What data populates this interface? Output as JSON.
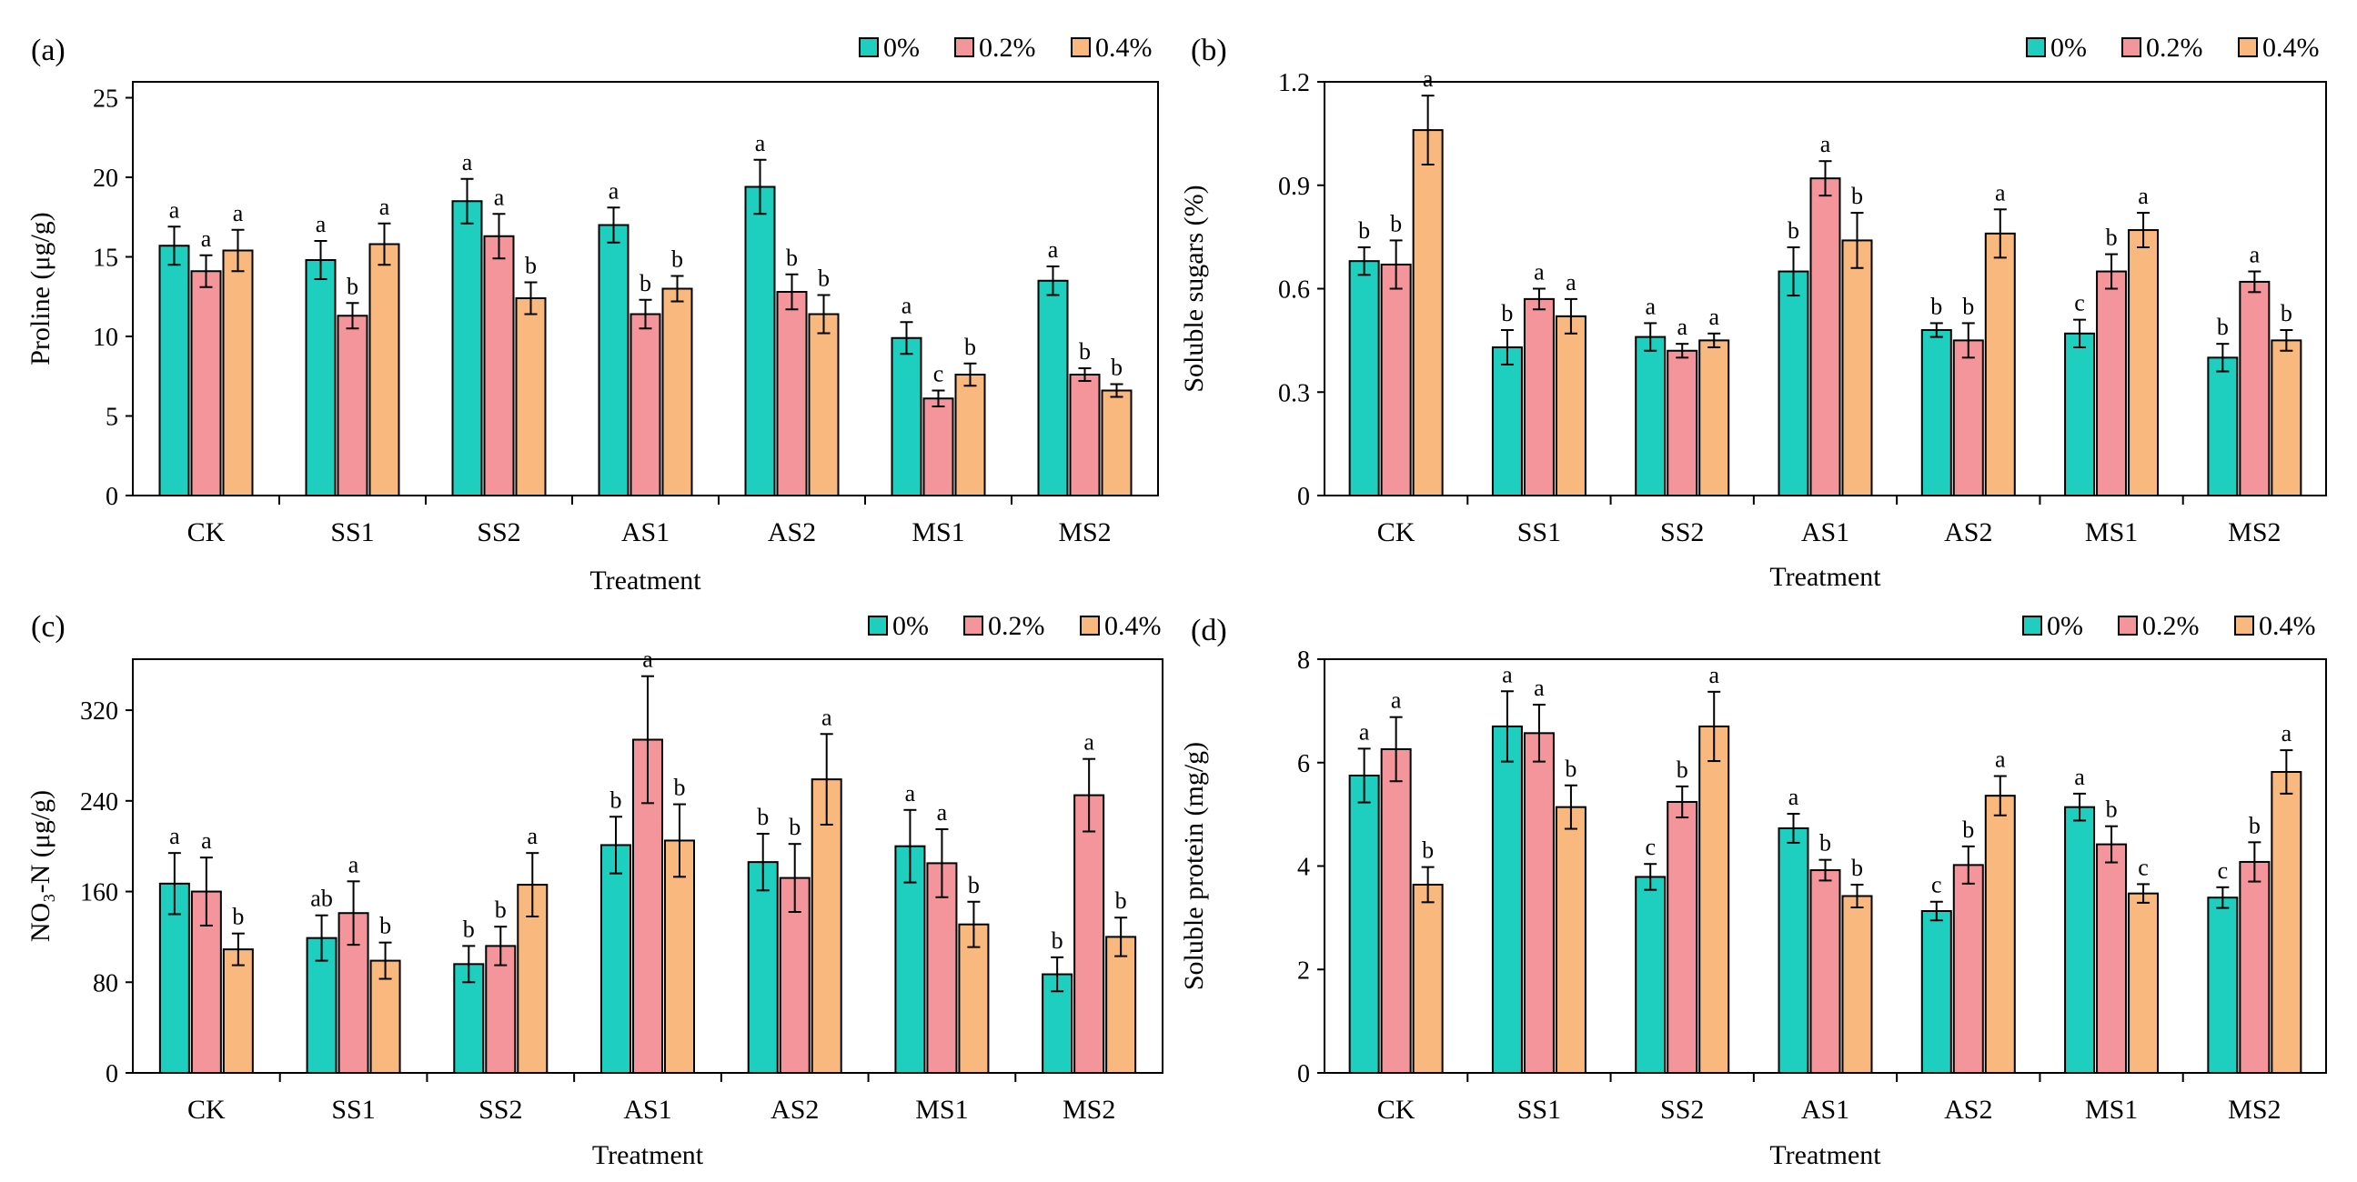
{
  "colors": {
    "0%": "#1ECFC0",
    "0.2%": "#F4949B",
    "0.4%": "#F8B87E",
    "axis": "#000000"
  },
  "chart_data": [
    {
      "type": "bar",
      "panel": "(a)",
      "categories": [
        "CK",
        "SS1",
        "SS2",
        "AS1",
        "AS2",
        "MS1",
        "MS2"
      ],
      "xlabel": "Treatment",
      "ylabel": "Proline (μg/g)",
      "ylim": [
        0,
        26
      ],
      "yticks": [
        0,
        5,
        10,
        15,
        20,
        25
      ],
      "legend": {
        "position": "top-right",
        "entries": [
          "0%",
          "0.2%",
          "0.4%"
        ]
      },
      "series": [
        {
          "name": "0%",
          "values": [
            15.7,
            14.8,
            18.5,
            17.0,
            19.4,
            9.9,
            13.5
          ],
          "errors": [
            1.2,
            1.2,
            1.4,
            1.1,
            1.7,
            1.0,
            0.9
          ],
          "labels": [
            "a",
            "a",
            "a",
            "a",
            "a",
            "a",
            "a"
          ]
        },
        {
          "name": "0.2%",
          "values": [
            14.1,
            11.3,
            16.3,
            11.4,
            12.8,
            6.1,
            7.6
          ],
          "errors": [
            1.0,
            0.8,
            1.4,
            0.9,
            1.1,
            0.5,
            0.4
          ],
          "labels": [
            "a",
            "b",
            "a",
            "b",
            "b",
            "c",
            "b"
          ]
        },
        {
          "name": "0.4%",
          "values": [
            15.4,
            15.8,
            12.4,
            13.0,
            11.4,
            7.6,
            6.6
          ],
          "errors": [
            1.3,
            1.3,
            1.0,
            0.8,
            1.2,
            0.7,
            0.4
          ],
          "labels": [
            "a",
            "a",
            "b",
            "b",
            "b",
            "b",
            "b"
          ]
        }
      ]
    },
    {
      "type": "bar",
      "panel": "(b)",
      "categories": [
        "CK",
        "SS1",
        "SS2",
        "AS1",
        "AS2",
        "MS1",
        "MS2"
      ],
      "xlabel": "Treatment",
      "ylabel": "Soluble sugars (%)",
      "ylim": [
        0,
        1.2
      ],
      "yticks": [
        "0",
        "0.3",
        "0.6",
        "0.9",
        "1.2"
      ],
      "legend": {
        "position": "top-right",
        "entries": [
          "0%",
          "0.2%",
          "0.4%"
        ]
      },
      "series": [
        {
          "name": "0%",
          "values": [
            0.68,
            0.43,
            0.46,
            0.65,
            0.48,
            0.47,
            0.4
          ],
          "errors": [
            0.04,
            0.05,
            0.04,
            0.07,
            0.02,
            0.04,
            0.04
          ],
          "labels": [
            "b",
            "b",
            "a",
            "b",
            "b",
            "c",
            "b"
          ]
        },
        {
          "name": "0.2%",
          "values": [
            0.67,
            0.57,
            0.42,
            0.92,
            0.45,
            0.65,
            0.62
          ],
          "errors": [
            0.07,
            0.03,
            0.02,
            0.05,
            0.05,
            0.05,
            0.03
          ],
          "labels": [
            "b",
            "a",
            "a",
            "a",
            "b",
            "b",
            "a"
          ]
        },
        {
          "name": "0.4%",
          "values": [
            1.06,
            0.52,
            0.45,
            0.74,
            0.76,
            0.77,
            0.45
          ],
          "errors": [
            0.1,
            0.05,
            0.02,
            0.08,
            0.07,
            0.05,
            0.03
          ],
          "labels": [
            "a",
            "a",
            "a",
            "b",
            "a",
            "a",
            "b"
          ]
        }
      ]
    },
    {
      "type": "bar",
      "panel": "(c)",
      "categories": [
        "CK",
        "SS1",
        "SS2",
        "AS1",
        "AS2",
        "MS1",
        "MS2"
      ],
      "xlabel": "Treatment",
      "ylabel": "NO₃-N (μg/g)",
      "ylim": [
        0,
        365
      ],
      "yticks": [
        0,
        80,
        160,
        240,
        320
      ],
      "legend": {
        "position": "top-right",
        "entries": [
          "0%",
          "0.2%",
          "0.4%"
        ]
      },
      "series": [
        {
          "name": "0%",
          "values": [
            167,
            119,
            96,
            201,
            186,
            200,
            87
          ],
          "errors": [
            27,
            20,
            16,
            25,
            25,
            32,
            15
          ],
          "labels": [
            "a",
            "ab",
            "b",
            "b",
            "b",
            "a",
            "b"
          ]
        },
        {
          "name": "0.2%",
          "values": [
            160,
            141,
            112,
            294,
            172,
            185,
            245
          ],
          "errors": [
            30,
            28,
            17,
            56,
            30,
            30,
            32
          ],
          "labels": [
            "a",
            "a",
            "b",
            "a",
            "b",
            "a",
            "a"
          ]
        },
        {
          "name": "0.4%",
          "values": [
            109,
            99,
            166,
            205,
            259,
            131,
            120
          ],
          "errors": [
            14,
            16,
            28,
            32,
            40,
            20,
            17
          ],
          "labels": [
            "b",
            "b",
            "a",
            "b",
            "a",
            "b",
            "b"
          ]
        }
      ]
    },
    {
      "type": "bar",
      "panel": "(d)",
      "categories": [
        "CK",
        "SS1",
        "SS2",
        "AS1",
        "AS2",
        "MS1",
        "MS2"
      ],
      "xlabel": "Treatment",
      "ylabel": "Soluble protein (mg/g)",
      "ylim": [
        0,
        8
      ],
      "yticks": [
        0,
        2,
        4,
        6,
        8
      ],
      "legend": {
        "position": "top-right",
        "entries": [
          "0%",
          "0.2%",
          "0.4%"
        ]
      },
      "series": [
        {
          "name": "0%",
          "values": [
            5.75,
            6.7,
            3.79,
            4.73,
            3.13,
            5.14,
            3.39
          ],
          "errors": [
            0.52,
            0.68,
            0.25,
            0.28,
            0.18,
            0.26,
            0.2
          ],
          "labels": [
            "a",
            "a",
            "c",
            "a",
            "c",
            "a",
            "c"
          ]
        },
        {
          "name": "0.2%",
          "values": [
            6.26,
            6.57,
            5.24,
            3.92,
            4.02,
            4.42,
            4.08
          ],
          "errors": [
            0.62,
            0.55,
            0.3,
            0.2,
            0.36,
            0.35,
            0.38
          ],
          "labels": [
            "a",
            "a",
            "b",
            "b",
            "b",
            "b",
            "b"
          ]
        },
        {
          "name": "0.4%",
          "values": [
            3.64,
            5.14,
            6.7,
            3.42,
            5.36,
            3.47,
            5.82
          ],
          "errors": [
            0.34,
            0.42,
            0.67,
            0.22,
            0.38,
            0.18,
            0.42
          ],
          "labels": [
            "b",
            "b",
            "a",
            "b",
            "a",
            "c",
            "a"
          ]
        }
      ]
    }
  ]
}
